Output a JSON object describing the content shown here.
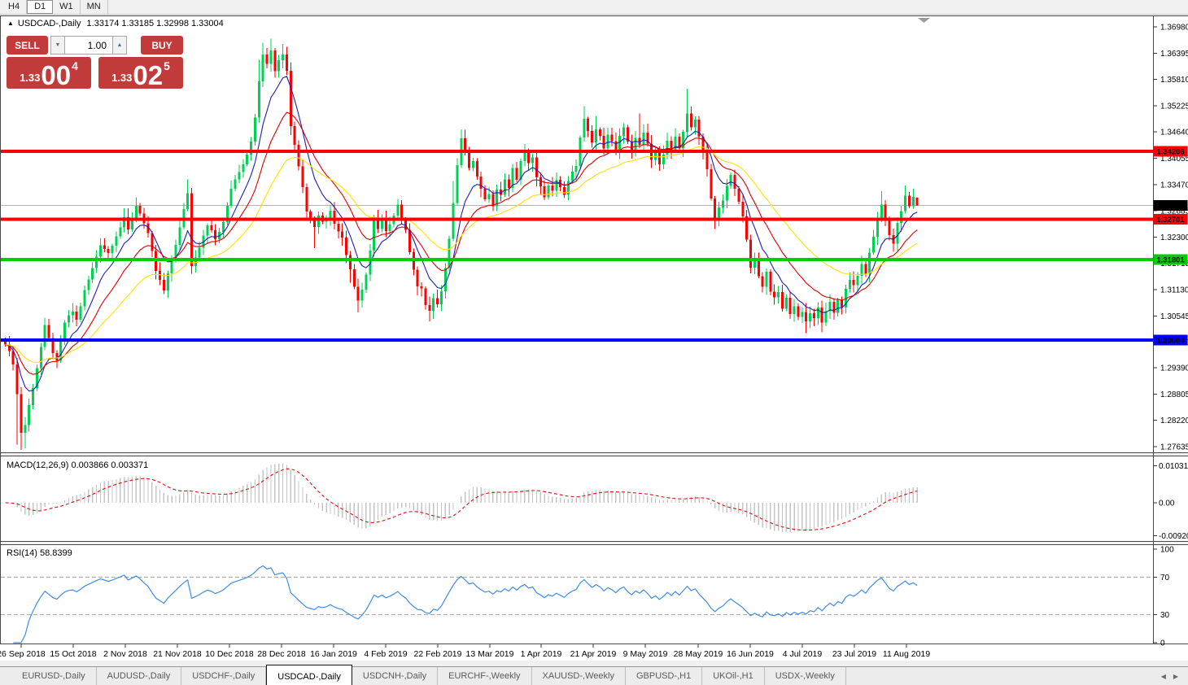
{
  "window": {
    "toolbar": {
      "timeframes": [
        "H4",
        "D1",
        "W1",
        "MN"
      ],
      "active": "D1"
    }
  },
  "chart": {
    "collapse_icon": "▲",
    "title_symbol": "USDCAD-,Daily",
    "title_ohlc": "1.33174 1.33185 1.32998 1.33004",
    "trade_panel": {
      "sell_label": "SELL",
      "buy_label": "BUY",
      "volume": "1.00",
      "spin_down_icon": "▼",
      "spin_up_icon": "▲",
      "sell_price": {
        "small": "1.33",
        "big": "00",
        "sup": "4"
      },
      "buy_price": {
        "small": "1.33",
        "big": "02",
        "sup": "5"
      }
    }
  },
  "chart_data": {
    "type": "candlestick",
    "symbol": "USDCAD-",
    "timeframe": "Daily",
    "current_bar": {
      "open": 1.33174,
      "high": 1.33185,
      "low": 1.32998,
      "close": 1.33004
    },
    "y_axis": {
      "min": 1.27635,
      "max": 1.3698,
      "ticks": [
        "1.36980",
        "1.36395",
        "1.35810",
        "1.35225",
        "1.34640",
        "1.34055",
        "1.33470",
        "1.32885",
        "1.32300",
        "1.31715",
        "1.31130",
        "1.30545",
        "1.29960",
        "1.29390",
        "1.28805",
        "1.28220",
        "1.27635"
      ]
    },
    "x_axis": {
      "labels": [
        "26 Sep 2018",
        "15 Oct 2018",
        "2 Nov 2018",
        "21 Nov 2018",
        "10 Dec 2018",
        "28 Dec 2018",
        "16 Jan 2019",
        "4 Feb 2019",
        "22 Feb 2019",
        "13 Mar 2019",
        "1 Apr 2019",
        "21 Apr 2019",
        "9 May 2019",
        "28 May 2019",
        "16 Jun 2019",
        "4 Jul 2019",
        "23 Jul 2019",
        "11 Aug 2019"
      ],
      "positions": [
        26,
        90,
        154,
        218,
        282,
        346,
        410,
        474,
        538,
        602,
        665,
        729,
        793,
        858,
        922,
        986,
        1050,
        1114
      ]
    },
    "levels": [
      {
        "price": 1.34206,
        "label": "1.34206",
        "color": "#ff0000"
      },
      {
        "price": 1.32701,
        "label": "1.32701",
        "color": "#ff0000"
      },
      {
        "price": 1.31801,
        "label": "1.31801",
        "color": "#00cc00"
      },
      {
        "price": 1.30004,
        "label": "1.30004",
        "color": "#0000ff"
      }
    ],
    "bid_line": {
      "price": 1.33004,
      "label": "1.33004",
      "line_color": "#b4b4b4",
      "label_bg": "#000000"
    },
    "candle_colors": {
      "up": "#00d152",
      "down": "#ff0000"
    },
    "candles_n": 231,
    "close_keypoints": [
      [
        0,
        1.2995
      ],
      [
        2,
        1.295
      ],
      [
        3,
        1.288
      ],
      [
        4,
        1.2795
      ],
      [
        5,
        1.2812
      ],
      [
        8,
        1.294
      ],
      [
        10,
        1.303
      ],
      [
        12,
        1.2975
      ],
      [
        13,
        1.295
      ],
      [
        15,
        1.304
      ],
      [
        17,
        1.3065
      ],
      [
        18,
        1.3045
      ],
      [
        20,
        1.311
      ],
      [
        22,
        1.316
      ],
      [
        24,
        1.3215
      ],
      [
        26,
        1.3195
      ],
      [
        28,
        1.3235
      ],
      [
        30,
        1.327
      ],
      [
        31,
        1.3245
      ],
      [
        33,
        1.33
      ],
      [
        34,
        1.3285
      ],
      [
        36,
        1.3235
      ],
      [
        38,
        1.3155
      ],
      [
        40,
        1.311
      ],
      [
        42,
        1.318
      ],
      [
        44,
        1.325
      ],
      [
        46,
        1.333
      ],
      [
        47,
        1.3165
      ],
      [
        49,
        1.321
      ],
      [
        51,
        1.326
      ],
      [
        53,
        1.3225
      ],
      [
        55,
        1.326
      ],
      [
        57,
        1.334
      ],
      [
        58,
        1.336
      ],
      [
        60,
        1.3395
      ],
      [
        62,
        1.344
      ],
      [
        63,
        1.35
      ],
      [
        64,
        1.358
      ],
      [
        65,
        1.364
      ],
      [
        66,
        1.3615
      ],
      [
        67,
        1.3648
      ],
      [
        68,
        1.36
      ],
      [
        69,
        1.3625
      ],
      [
        70,
        1.3638
      ],
      [
        71,
        1.36
      ],
      [
        72,
        1.348
      ],
      [
        73,
        1.344
      ],
      [
        74,
        1.339
      ],
      [
        75,
        1.334
      ],
      [
        76,
        1.329
      ],
      [
        77,
        1.3268
      ],
      [
        78,
        1.3255
      ],
      [
        79,
        1.3282
      ],
      [
        80,
        1.3262
      ],
      [
        81,
        1.3272
      ],
      [
        82,
        1.3292
      ],
      [
        83,
        1.3262
      ],
      [
        85,
        1.323
      ],
      [
        86,
        1.319
      ],
      [
        87,
        1.316
      ],
      [
        88,
        1.312
      ],
      [
        89,
        1.3085
      ],
      [
        90,
        1.311
      ],
      [
        91,
        1.315
      ],
      [
        92,
        1.32
      ],
      [
        93,
        1.327
      ],
      [
        94,
        1.3245
      ],
      [
        95,
        1.3268
      ],
      [
        96,
        1.324
      ],
      [
        97,
        1.3262
      ],
      [
        98,
        1.3282
      ],
      [
        99,
        1.3302
      ],
      [
        100,
        1.3272
      ],
      [
        101,
        1.3242
      ],
      [
        102,
        1.32
      ],
      [
        103,
        1.316
      ],
      [
        104,
        1.312
      ],
      [
        105,
        1.3112
      ],
      [
        106,
        1.308
      ],
      [
        107,
        1.3065
      ],
      [
        108,
        1.3092
      ],
      [
        109,
        1.3076
      ],
      [
        110,
        1.3112
      ],
      [
        111,
        1.316
      ],
      [
        112,
        1.323
      ],
      [
        113,
        1.331
      ],
      [
        114,
        1.339
      ],
      [
        115,
        1.345
      ],
      [
        116,
        1.342
      ],
      [
        117,
        1.338
      ],
      [
        118,
        1.34
      ],
      [
        119,
        1.336
      ],
      [
        120,
        1.334
      ],
      [
        121,
        1.3312
      ],
      [
        122,
        1.3322
      ],
      [
        123,
        1.3302
      ],
      [
        124,
        1.334
      ],
      [
        125,
        1.3322
      ],
      [
        126,
        1.336
      ],
      [
        127,
        1.3342
      ],
      [
        128,
        1.338
      ],
      [
        129,
        1.336
      ],
      [
        130,
        1.34
      ],
      [
        131,
        1.342
      ],
      [
        132,
        1.3392
      ],
      [
        133,
        1.3412
      ],
      [
        134,
        1.3362
      ],
      [
        135,
        1.334
      ],
      [
        136,
        1.3322
      ],
      [
        137,
        1.3342
      ],
      [
        138,
        1.333
      ],
      [
        139,
        1.336
      ],
      [
        140,
        1.3342
      ],
      [
        141,
        1.3322
      ],
      [
        142,
        1.3352
      ],
      [
        143,
        1.3372
      ],
      [
        144,
        1.3392
      ],
      [
        145,
        1.345
      ],
      [
        146,
        1.349
      ],
      [
        147,
        1.3462
      ],
      [
        148,
        1.344
      ],
      [
        149,
        1.347
      ],
      [
        150,
        1.3452
      ],
      [
        151,
        1.3432
      ],
      [
        152,
        1.3462
      ],
      [
        153,
        1.3442
      ],
      [
        154,
        1.3422
      ],
      [
        155,
        1.3452
      ],
      [
        156,
        1.347
      ],
      [
        157,
        1.3442
      ],
      [
        158,
        1.3422
      ],
      [
        159,
        1.3452
      ],
      [
        160,
        1.3432
      ],
      [
        161,
        1.3462
      ],
      [
        162,
        1.3442
      ],
      [
        163,
        1.3402
      ],
      [
        164,
        1.3422
      ],
      [
        165,
        1.3392
      ],
      [
        166,
        1.3412
      ],
      [
        167,
        1.3442
      ],
      [
        168,
        1.3422
      ],
      [
        169,
        1.3452
      ],
      [
        170,
        1.3432
      ],
      [
        171,
        1.3462
      ],
      [
        172,
        1.3502
      ],
      [
        173,
        1.3472
      ],
      [
        174,
        1.3492
      ],
      [
        175,
        1.3452
      ],
      [
        176,
        1.3422
      ],
      [
        177,
        1.3382
      ],
      [
        178,
        1.3312
      ],
      [
        179,
        1.3272
      ],
      [
        180,
        1.3292
      ],
      [
        181,
        1.3312
      ],
      [
        182,
        1.3342
      ],
      [
        183,
        1.3365
      ],
      [
        184,
        1.3342
      ],
      [
        185,
        1.3312
      ],
      [
        186,
        1.3272
      ],
      [
        187,
        1.3222
      ],
      [
        188,
        1.3162
      ],
      [
        189,
        1.3182
      ],
      [
        190,
        1.3142
      ],
      [
        191,
        1.3122
      ],
      [
        192,
        1.3152
      ],
      [
        193,
        1.3112
      ],
      [
        194,
        1.3092
      ],
      [
        195,
        1.3106
      ],
      [
        196,
        1.3072
      ],
      [
        197,
        1.3092
      ],
      [
        198,
        1.3062
      ],
      [
        199,
        1.3076
      ],
      [
        200,
        1.3052
      ],
      [
        201,
        1.3066
      ],
      [
        202,
        1.3042
      ],
      [
        203,
        1.3062
      ],
      [
        204,
        1.3046
      ],
      [
        205,
        1.3072
      ],
      [
        206,
        1.3042
      ],
      [
        207,
        1.3062
      ],
      [
        208,
        1.3082
      ],
      [
        209,
        1.3062
      ],
      [
        210,
        1.3092
      ],
      [
        211,
        1.3076
      ],
      [
        212,
        1.3112
      ],
      [
        213,
        1.3132
      ],
      [
        214,
        1.3122
      ],
      [
        215,
        1.3146
      ],
      [
        216,
        1.3166
      ],
      [
        217,
        1.3152
      ],
      [
        218,
        1.3192
      ],
      [
        219,
        1.3232
      ],
      [
        220,
        1.3272
      ],
      [
        221,
        1.3302
      ],
      [
        222,
        1.3272
      ],
      [
        223,
        1.3232
      ],
      [
        224,
        1.3216
      ],
      [
        225,
        1.3262
      ],
      [
        226,
        1.3292
      ],
      [
        227,
        1.3322
      ],
      [
        228,
        1.3296
      ],
      [
        229,
        1.332
      ],
      [
        230,
        1.33004
      ]
    ],
    "wick_overrides": {
      "3": {
        "low": 1.2768
      },
      "4": {
        "low": 1.2756
      },
      "5": {
        "low": 1.276
      },
      "46": {
        "high": 1.3358
      },
      "64": {
        "high": 1.3625
      },
      "65": {
        "high": 1.3663
      },
      "67": {
        "high": 1.3672
      },
      "70": {
        "high": 1.366
      },
      "78": {
        "low": 1.3205
      },
      "87": {
        "low": 1.3128
      },
      "89": {
        "low": 1.3062
      },
      "107": {
        "low": 1.3042
      },
      "113": {
        "high": 1.3355
      },
      "115": {
        "high": 1.347
      },
      "146": {
        "high": 1.3521
      },
      "149": {
        "high": 1.35
      },
      "160": {
        "high": 1.3505
      },
      "172": {
        "high": 1.356
      },
      "179": {
        "low": 1.3248
      },
      "202": {
        "low": 1.3016
      },
      "206": {
        "low": 1.3018
      },
      "221": {
        "high": 1.3332
      },
      "227": {
        "high": 1.3345
      },
      "229": {
        "high": 1.3338
      }
    },
    "moving_averages": [
      {
        "period": 8,
        "color": "#1e1eb4"
      },
      {
        "period": 17,
        "color": "#dd0000"
      },
      {
        "period": 34,
        "color": "#ffe100"
      }
    ],
    "indicators": [
      {
        "name": "MACD",
        "label": "MACD(12,26,9) 0.003866 0.003371",
        "params": [
          12,
          26,
          9
        ],
        "current": [
          0.003866,
          0.003371
        ],
        "axis_ticks": [
          "0.010311",
          "0.00",
          "-0.009203"
        ],
        "histogram_color": "#c4c4c4",
        "signal_color": "#e01010"
      },
      {
        "name": "RSI",
        "label": "RSI(14) 58.8399",
        "period": 14,
        "current": 58.8399,
        "axis_ticks": [
          "100",
          "70",
          "30",
          "0"
        ],
        "levels": [
          70,
          30
        ],
        "line_color": "#3f8ce6"
      }
    ]
  },
  "tabs": {
    "items": [
      "EURUSD-,Daily",
      "AUDUSD-,Daily",
      "USDCHF-,Daily",
      "USDCAD-,Daily",
      "USDCNH-,Daily",
      "EURCHF-,Weekly",
      "XAUUSD-,Weekly",
      "GBPUSD-,H1",
      "UKOil-,H1",
      "USDX-,Weekly"
    ],
    "active": "USDCAD-,Daily",
    "scroll_left_icon": "◀",
    "scroll_right_icon": "▶"
  }
}
